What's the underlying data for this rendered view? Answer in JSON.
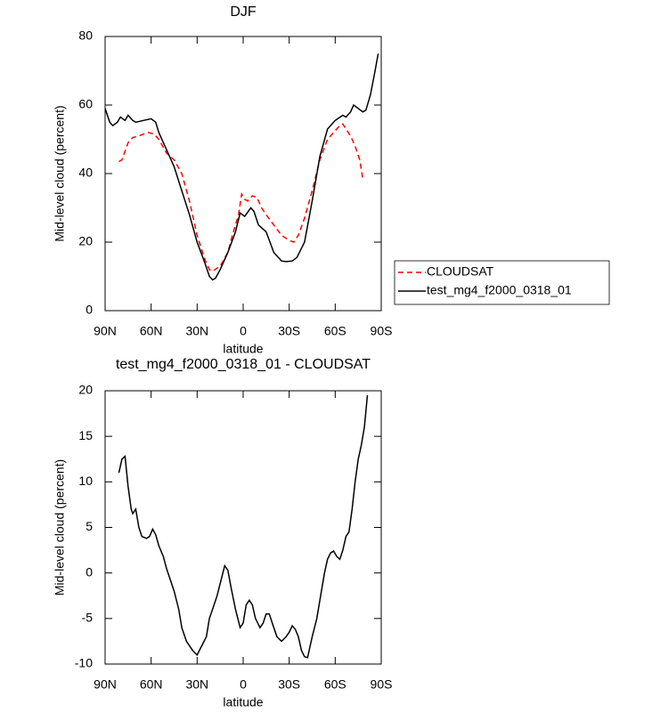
{
  "chart_data": [
    {
      "type": "line",
      "title": "DJF",
      "xlabel": "latitude",
      "ylabel": "Mid-level cloud (percent)",
      "xlim": [
        90,
        -90
      ],
      "xticks": [
        {
          "value": 90,
          "label": "90N"
        },
        {
          "value": 60,
          "label": "60N"
        },
        {
          "value": 30,
          "label": "30N"
        },
        0,
        {
          "value": -30,
          "label": "30S"
        },
        {
          "value": -60,
          "label": "60S"
        },
        {
          "value": -90,
          "label": "90S"
        }
      ],
      "ylim": [
        0,
        80
      ],
      "yticks": [
        0,
        20,
        40,
        60,
        80
      ],
      "legend": "right",
      "series": [
        {
          "name": "CLOUDSAT",
          "color": "#ff0000",
          "dashed": true,
          "x": [
            81,
            79,
            77,
            75,
            72,
            68,
            65,
            62,
            58,
            55,
            50,
            45,
            40,
            35,
            30,
            25,
            22,
            20,
            15,
            10,
            7,
            3,
            1,
            -1,
            -3,
            -6,
            -9,
            -12,
            -15,
            -20,
            -25,
            -30,
            -33,
            -36,
            -40,
            -45,
            -50,
            -55,
            -60,
            -63,
            -65,
            -67,
            -70,
            -73,
            -76,
            -78
          ],
          "values": [
            43.5,
            44,
            46.5,
            49,
            50.5,
            51,
            51.5,
            52,
            51.5,
            50,
            46,
            44,
            40,
            32,
            22,
            15,
            12,
            11.5,
            13,
            17,
            22,
            28,
            34,
            32.5,
            32,
            33.5,
            33,
            30,
            28,
            25,
            22,
            20.5,
            20,
            22,
            27,
            35,
            44,
            50,
            52.5,
            54,
            54.5,
            53,
            51,
            48,
            44,
            38.5
          ]
        },
        {
          "name": "test_mg4_f2000_0318_01",
          "color": "#000000",
          "dashed": false,
          "x": [
            90,
            87,
            85,
            82,
            80,
            77,
            75,
            72,
            70,
            65,
            60,
            57,
            55,
            50,
            45,
            40,
            35,
            30,
            25,
            22,
            20,
            18,
            15,
            10,
            5,
            2,
            -1,
            -5,
            -7,
            -10,
            -15,
            -20,
            -25,
            -28,
            -32,
            -35,
            -40,
            -45,
            -50,
            -55,
            -60,
            -65,
            -67,
            -70,
            -72,
            -75,
            -78,
            -80,
            -83,
            -86,
            -88
          ],
          "values": [
            59,
            55,
            54,
            55,
            56.5,
            55.5,
            57,
            55.5,
            55,
            55.5,
            56,
            55,
            52,
            47,
            42,
            35,
            28,
            20,
            14,
            10,
            9,
            9.5,
            12,
            17,
            23,
            28.5,
            27.5,
            30,
            29,
            25,
            23,
            17,
            14.5,
            14.3,
            14.5,
            15.5,
            20,
            32,
            45,
            53,
            55.5,
            57,
            56.5,
            58,
            60,
            59,
            58,
            58.5,
            63,
            70,
            75
          ]
        }
      ]
    },
    {
      "type": "line",
      "title": "test_mg4_f2000_0318_01 - CLOUDSAT",
      "xlabel": "latitude",
      "ylabel": "Mid-level cloud (percent)",
      "xlim": [
        90,
        -90
      ],
      "xticks": [
        {
          "value": 90,
          "label": "90N"
        },
        {
          "value": 60,
          "label": "60N"
        },
        {
          "value": 30,
          "label": "30N"
        },
        0,
        {
          "value": -30,
          "label": "30S"
        },
        {
          "value": -60,
          "label": "60S"
        },
        {
          "value": -90,
          "label": "90S"
        }
      ],
      "ylim": [
        -10,
        20
      ],
      "yticks": [
        -10,
        -5,
        0,
        5,
        10,
        15,
        20
      ],
      "series": [
        {
          "color": "#000000",
          "dashed": false,
          "x": [
            81,
            79,
            77,
            75,
            73,
            72,
            70,
            68,
            66,
            63,
            61,
            59,
            57,
            55,
            52,
            50,
            45,
            42,
            40,
            37,
            33,
            30,
            27,
            24,
            22,
            20,
            17,
            14,
            12,
            10,
            8,
            5,
            2,
            0,
            -2,
            -4,
            -6,
            -8,
            -11,
            -13,
            -15,
            -17,
            -19,
            -22,
            -25,
            -28,
            -30,
            -32,
            -34,
            -36,
            -38,
            -40,
            -42,
            -45,
            -48,
            -50,
            -53,
            -55,
            -57,
            -59,
            -61,
            -63,
            -65,
            -67,
            -69,
            -71,
            -73,
            -75,
            -77,
            -79,
            -81
          ],
          "values": [
            11,
            12.5,
            12.8,
            9.5,
            7,
            6.5,
            7,
            5,
            4,
            3.8,
            4,
            4.8,
            4.2,
            3,
            1.8,
            0.5,
            -2,
            -4,
            -6,
            -7.5,
            -8.5,
            -9,
            -8,
            -7,
            -5,
            -4,
            -2.5,
            -0.5,
            0.8,
            0.3,
            -1.5,
            -4,
            -6,
            -5.5,
            -3.5,
            -3,
            -3.5,
            -5,
            -6,
            -5.5,
            -4.5,
            -4.5,
            -5.5,
            -7,
            -7.5,
            -7,
            -6.5,
            -5.8,
            -6.2,
            -7,
            -8.5,
            -9.2,
            -9.3,
            -7,
            -5,
            -3,
            0,
            1.5,
            2.2,
            2.4,
            1.8,
            1.5,
            2.5,
            4,
            4.5,
            7,
            10,
            12.5,
            14,
            16,
            19.5
          ]
        }
      ]
    }
  ]
}
